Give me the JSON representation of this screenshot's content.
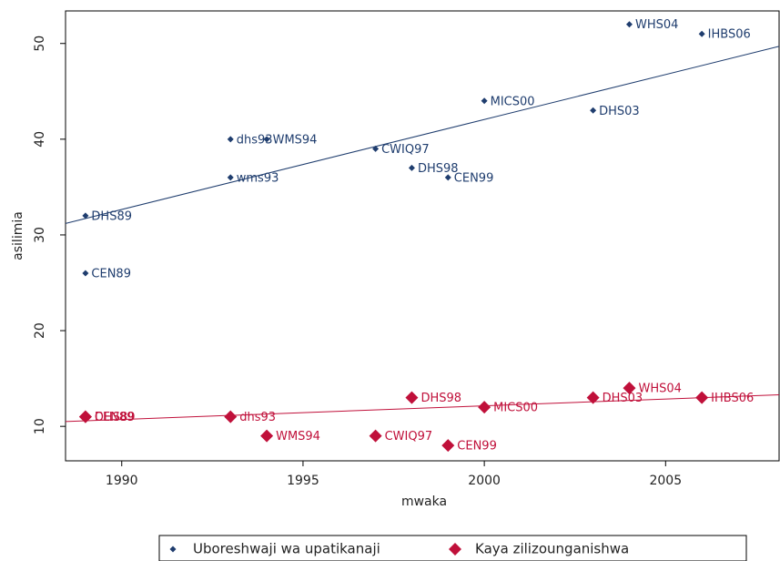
{
  "chart_data": {
    "type": "scatter",
    "xlabel": "mwaka",
    "ylabel": "asilimia",
    "xlim": [
      1988.45,
      2008.13
    ],
    "xticks": [
      1990,
      1995,
      2000,
      2005
    ],
    "ylim": [
      6.4,
      53.4
    ],
    "yticks": [
      10,
      20,
      30,
      40,
      50
    ],
    "series": [
      {
        "name": "Uboreshwaji wa upatikanaji",
        "color": "#1f3d6e",
        "marker": "small-diamond",
        "x": [
          1989,
          1989,
          1993,
          1993,
          1994,
          1997,
          1998,
          1999,
          2000,
          2003,
          2004,
          2006
        ],
        "values": [
          32,
          26,
          40,
          36,
          40,
          39,
          37,
          36,
          44,
          43,
          52,
          51
        ],
        "labels": [
          "DHS89",
          "CEN89",
          "dhs93",
          "wms93",
          "WMS94",
          "CWIQ97",
          "DHS98",
          "CEN99",
          "MICS00",
          "DHS03",
          "WHS04",
          "IHBS06"
        ],
        "fit": {
          "x": [
            1988.45,
            2008.13
          ],
          "values": [
            31.2,
            49.7
          ]
        }
      },
      {
        "name": "Kaya zilizounganishwa",
        "color": "#c0103a",
        "marker": "diamond",
        "x": [
          1989,
          1989,
          1993,
          1994,
          1997,
          1998,
          1999,
          2000,
          2003,
          2004,
          2006
        ],
        "values": [
          11,
          11,
          11,
          9,
          9,
          13,
          8,
          12,
          13,
          14,
          13
        ],
        "labels": [
          "DHS89",
          "CEN89",
          "dhs93",
          "WMS94",
          "CWIQ97",
          "DHS98",
          "CEN99",
          "MICS00",
          "DHS03",
          "WHS04",
          "IHBS06"
        ],
        "fit": {
          "x": [
            1988.45,
            2008.13
          ],
          "values": [
            10.5,
            13.3
          ]
        }
      }
    ]
  }
}
